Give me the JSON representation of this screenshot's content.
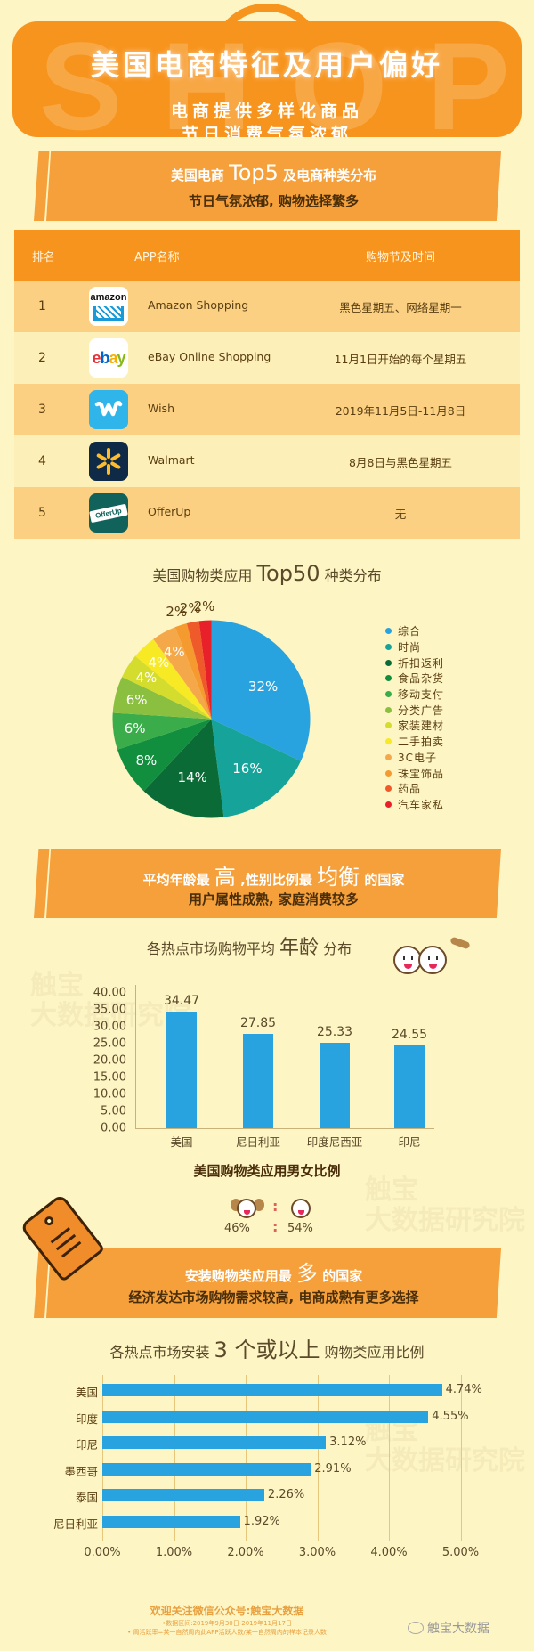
{
  "hero": {
    "watermark": "SHOP",
    "title": "美国电商特征及用户偏好",
    "subtitle_1": "电商提供多样化商品",
    "subtitle_2": "节日消费气氛浓郁"
  },
  "section1": {
    "title_pre": "美国电商",
    "title_big": "Top5",
    "title_post": "及电商种类分布",
    "subtitle": "节日气氛浓郁, 购物选择繁多"
  },
  "table": {
    "headers": {
      "rank": "排名",
      "app": "APP名称",
      "festival": "购物节及时间"
    },
    "rows": [
      {
        "rank": "1",
        "icon": "amazon-icon",
        "icon_text": "amazon",
        "name": "Amazon Shopping",
        "festival": "黑色星期五、网络星期一"
      },
      {
        "rank": "2",
        "icon": "ebay-icon",
        "icon_text": "ebay",
        "name": "eBay Online Shopping",
        "festival": "11月1日开始的每个星期五"
      },
      {
        "rank": "3",
        "icon": "wish-icon",
        "icon_text": "w",
        "name": "Wish",
        "festival": "2019年11月5日-11月8日"
      },
      {
        "rank": "4",
        "icon": "walmart-icon",
        "icon_text": "",
        "name": "Walmart",
        "festival": "8月8日与黑色星期五"
      },
      {
        "rank": "5",
        "icon": "offerup-icon",
        "icon_text": "OfferUp",
        "name": "OfferUp",
        "festival": "无"
      }
    ],
    "colors": {
      "header": "#f7941d",
      "odd": "#fbd083",
      "even": "#fdefb8"
    }
  },
  "pie_section": {
    "title_pre": "美国购物类应用",
    "title_big": "Top50",
    "title_post": "种类分布"
  },
  "age_section_banner": {
    "title_1": "平均年龄最",
    "title_big_1": "高",
    "title_2": ",性别比例最",
    "title_big_2": "均衡",
    "title_3": "的国家",
    "subtitle": "用户属性成熟, 家庭消费较多"
  },
  "age_chart_title": {
    "pre": "各热点市场购物平均",
    "big": "年龄",
    "post": "分布"
  },
  "gender": {
    "title": "美国购物类应用男女比例",
    "female_pct": "46%",
    "male_pct": "54%",
    "separator": ":"
  },
  "install_section_banner": {
    "title_pre": "安装购物类应用最",
    "title_big": "多",
    "title_post": "的国家",
    "subtitle": "经济发达市场购物需求较高, 电商成熟有更多选择"
  },
  "install_chart_title": {
    "pre": "各热点市场安装",
    "big": "3 个或以上",
    "post": "购物类应用比例"
  },
  "footer": {
    "follow": "欢迎关注微信公众号:触宝大数据",
    "date_range": "•数据区间:2019年9月30日-2019年11月17日",
    "definition": "• 周活跃率=某一自然周内此APP活跃人数/某一自然周内的样本记录人数",
    "brand": "触宝大数据"
  },
  "watermark": {
    "line1": "触宝",
    "line2": "大数据研究院"
  },
  "chart_data": [
    {
      "type": "pie",
      "title": "美国购物类应用 Top50 种类分布",
      "categories": [
        "综合",
        "时尚",
        "折扣返利",
        "食品杂货",
        "移动支付",
        "分类广告",
        "家装建材",
        "二手拍卖",
        "3C电子",
        "珠宝饰品",
        "药品",
        "汽车家私"
      ],
      "values": [
        32,
        16,
        14,
        8,
        6,
        6,
        4,
        4,
        4,
        2,
        2,
        2
      ],
      "labels": [
        "32%",
        "16%",
        "14%",
        "8%",
        "6%",
        "6%",
        "4%",
        "4%",
        "4%",
        "2%",
        "2%",
        "2%"
      ],
      "colors": [
        "#29a3df",
        "#15a39a",
        "#0b6b36",
        "#118f3e",
        "#3aac4a",
        "#8bbf3f",
        "#d4dc2e",
        "#f7ea25",
        "#f5a84a",
        "#f59a2e",
        "#ee5a2a",
        "#e8202a"
      ],
      "legend_position": "right"
    },
    {
      "type": "bar",
      "title": "各热点市场购物平均年龄分布",
      "categories": [
        "美国",
        "尼日利亚",
        "印度尼西亚",
        "印尼"
      ],
      "values": [
        34.47,
        27.85,
        25.33,
        24.55
      ],
      "value_labels": [
        "34.47",
        "27.85",
        "25.33",
        "24.55"
      ],
      "yticks": [
        "0.00",
        "5.00",
        "10.00",
        "15.00",
        "20.00",
        "25.00",
        "30.00",
        "35.00",
        "40.00"
      ],
      "ylim": [
        0,
        40
      ],
      "xlabel": "",
      "ylabel": "",
      "color": "#29a3df",
      "grid": false
    },
    {
      "type": "bar",
      "orientation": "horizontal",
      "title": "各热点市场安装 3 个或以上 购物类应用比例",
      "categories": [
        "美国",
        "印度",
        "印尼",
        "墨西哥",
        "泰国",
        "尼日利亚"
      ],
      "values": [
        4.74,
        4.55,
        3.12,
        2.91,
        2.26,
        1.92
      ],
      "value_labels": [
        "4.74%",
        "4.55%",
        "3.12%",
        "2.91%",
        "2.26%",
        "1.92%"
      ],
      "xticks": [
        "0.00%",
        "1.00%",
        "2.00%",
        "3.00%",
        "4.00%",
        "5.00%"
      ],
      "xlim": [
        0,
        5
      ],
      "color": "#29a3df",
      "grid": true
    }
  ]
}
